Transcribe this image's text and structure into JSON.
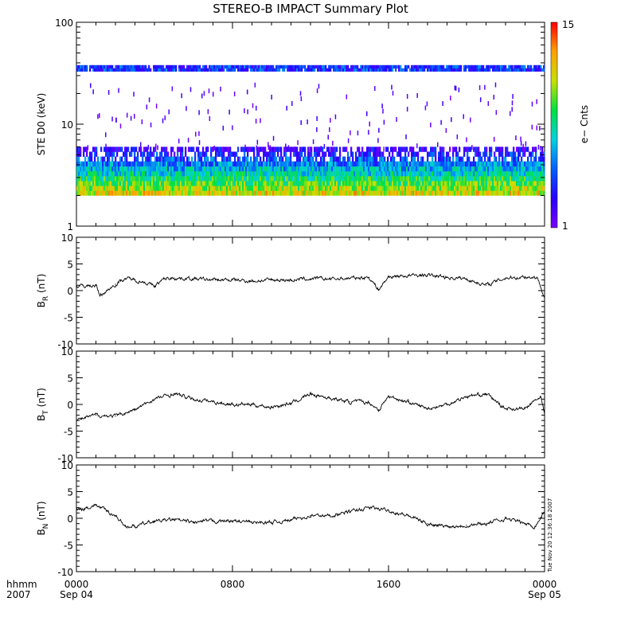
{
  "title": "STEREO-B IMPACT Summary Plot",
  "timestamp": "Tue Nov 20 12:36:18 2007",
  "time_axis": {
    "corner_top": "hhmm",
    "corner_bottom": "2007",
    "ticks": [
      {
        "label": "0000",
        "sub": "Sep 04"
      },
      {
        "label": "0800",
        "sub": ""
      },
      {
        "label": "1600",
        "sub": ""
      },
      {
        "label": "0000",
        "sub": "Sep 05"
      }
    ]
  },
  "colorbar": {
    "label": "e− Cnts",
    "min_label": "1",
    "max_label": "15",
    "colors": [
      "#7a00ff",
      "#2a00ff",
      "#0060ff",
      "#00d0e0",
      "#00e040",
      "#c8e000",
      "#ffa000",
      "#ff0000"
    ]
  },
  "chart_data": [
    {
      "type": "heatmap",
      "ylabel": "STE D0 (keV)",
      "yscale": "log",
      "ylim": [
        1,
        100
      ],
      "ytick_labels": [
        "1",
        "10",
        "100"
      ],
      "xlim_hours": [
        0,
        24
      ],
      "bands": [
        {
          "name": "main",
          "ymin": 2,
          "ymax": 6,
          "counts_range": [
            2,
            12
          ]
        },
        {
          "name": "upper",
          "ymin": 33,
          "ymax": 38,
          "counts_range": [
            2,
            6
          ]
        }
      ]
    },
    {
      "type": "line",
      "ylabel": "B_R (nT)",
      "ylabel_main": "B",
      "ylabel_sub": "R",
      "ylabel_unit": " (nT)",
      "ylim": [
        -10,
        10
      ],
      "ytick_labels": [
        "-10",
        "-5",
        "0",
        "5",
        "10"
      ],
      "x_hours": [
        0,
        1,
        1.2,
        2,
        2.5,
        3,
        3.5,
        4,
        4.5,
        5,
        6,
        7,
        8,
        9,
        10,
        11,
        12,
        13,
        14,
        15,
        15.5,
        16,
        17,
        18,
        19,
        20,
        21,
        22,
        23,
        23.6,
        24
      ],
      "values": [
        0.8,
        1.0,
        -1.0,
        1.2,
        2.3,
        2.0,
        1.6,
        0.8,
        2.2,
        2.4,
        2.2,
        2.0,
        2.0,
        1.8,
        2.0,
        2.0,
        2.2,
        2.2,
        2.3,
        2.5,
        0.2,
        2.6,
        2.8,
        2.9,
        2.5,
        2.2,
        1.0,
        2.4,
        2.6,
        2.5,
        -1.0
      ]
    },
    {
      "type": "line",
      "ylabel": "B_T (nT)",
      "ylabel_main": "B",
      "ylabel_sub": "T",
      "ylabel_unit": " (nT)",
      "ylim": [
        -10,
        10
      ],
      "ytick_labels": [
        "-10",
        "-5",
        "0",
        "5",
        "10"
      ],
      "x_hours": [
        0,
        1,
        2,
        3,
        4,
        5,
        6,
        7,
        8,
        9,
        10,
        11,
        12,
        13,
        14,
        15,
        15.5,
        16,
        17,
        18,
        19,
        20,
        21,
        22,
        23,
        23.8,
        24
      ],
      "values": [
        -3.0,
        -2.0,
        -2.2,
        -1.0,
        1.0,
        2.0,
        1.0,
        0.5,
        0.0,
        0.0,
        -0.5,
        0.2,
        2.0,
        1.2,
        0.5,
        0.4,
        -1.0,
        1.5,
        0.5,
        -0.8,
        0.0,
        1.5,
        2.0,
        -0.8,
        -0.8,
        1.5,
        -2.0
      ]
    },
    {
      "type": "line",
      "ylabel": "B_N (nT)",
      "ylabel_main": "B",
      "ylabel_sub": "N",
      "ylabel_unit": " (nT)",
      "ylim": [
        -10,
        10
      ],
      "ytick_labels": [
        "-10",
        "-5",
        "0",
        "5",
        "10"
      ],
      "x_hours": [
        0,
        1,
        2,
        2.5,
        3,
        4,
        5,
        6,
        7,
        8,
        9,
        10,
        11,
        12,
        13,
        14,
        15,
        16,
        17,
        18,
        19,
        20,
        21,
        22,
        23,
        23.5,
        24
      ],
      "values": [
        1.5,
        2.5,
        0.5,
        -1.5,
        -1.5,
        -0.5,
        -0.3,
        -0.8,
        -0.5,
        -0.5,
        -0.8,
        -0.8,
        -0.3,
        0.5,
        0.5,
        1.2,
        2.0,
        1.5,
        0.5,
        -1.0,
        -1.5,
        -1.3,
        -1.0,
        0.0,
        -1.0,
        -1.5,
        1.2
      ]
    }
  ]
}
